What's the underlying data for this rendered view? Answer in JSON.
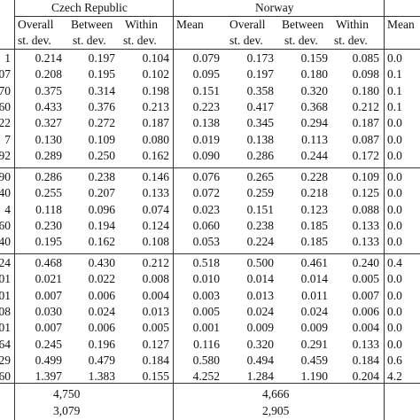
{
  "headers": {
    "group1": "Czech Republic",
    "group2": "Norway",
    "col_overall": "Overall",
    "col_between": "Between",
    "col_within": "Within",
    "col_mean": "Mean",
    "col_sd": "st. dev.",
    "col_mean_right": "Mean"
  },
  "rows": [
    {
      "stub": "1",
      "c": [
        "0.214",
        "0.197",
        "0.104"
      ],
      "n": [
        "0.079",
        "0.173",
        "0.159",
        "0.085"
      ],
      "r": "0.0"
    },
    {
      "stub": "07",
      "c": [
        "0.208",
        "0.195",
        "0.102"
      ],
      "n": [
        "0.095",
        "0.197",
        "0.180",
        "0.098"
      ],
      "r": "0.1"
    },
    {
      "stub": "70",
      "c": [
        "0.375",
        "0.314",
        "0.198"
      ],
      "n": [
        "0.151",
        "0.358",
        "0.320",
        "0.180"
      ],
      "r": "0.1"
    },
    {
      "stub": "60",
      "c": [
        "0.433",
        "0.376",
        "0.213"
      ],
      "n": [
        "0.223",
        "0.417",
        "0.368",
        "0.212"
      ],
      "r": "0.1"
    },
    {
      "stub": "22",
      "c": [
        "0.327",
        "0.272",
        "0.187"
      ],
      "n": [
        "0.138",
        "0.345",
        "0.294",
        "0.187"
      ],
      "r": "0.0"
    },
    {
      "stub": "7",
      "c": [
        "0.130",
        "0.109",
        "0.080"
      ],
      "n": [
        "0.019",
        "0.138",
        "0.113",
        "0.087"
      ],
      "r": "0.0"
    },
    {
      "stub": "92",
      "c": [
        "0.289",
        "0.250",
        "0.162"
      ],
      "n": [
        "0.090",
        "0.286",
        "0.244",
        "0.172"
      ],
      "r": "0.0"
    },
    {
      "stub": "90",
      "c": [
        "0.286",
        "0.238",
        "0.146"
      ],
      "n": [
        "0.076",
        "0.265",
        "0.228",
        "0.109"
      ],
      "r": "0.0"
    },
    {
      "stub": "40",
      "c": [
        "0.255",
        "0.207",
        "0.133"
      ],
      "n": [
        "0.072",
        "0.259",
        "0.218",
        "0.125"
      ],
      "r": "0.0"
    },
    {
      "stub": "4",
      "c": [
        "0.118",
        "0.096",
        "0.074"
      ],
      "n": [
        "0.023",
        "0.151",
        "0.123",
        "0.088"
      ],
      "r": "0.0"
    },
    {
      "stub": "60",
      "c": [
        "0.230",
        "0.194",
        "0.124"
      ],
      "n": [
        "0.060",
        "0.238",
        "0.185",
        "0.133"
      ],
      "r": "0.0"
    },
    {
      "stub": "40",
      "c": [
        "0.195",
        "0.162",
        "0.108"
      ],
      "n": [
        "0.053",
        "0.224",
        "0.185",
        "0.133"
      ],
      "r": "0.0"
    },
    {
      "stub": "24",
      "c": [
        "0.468",
        "0.430",
        "0.212"
      ],
      "n": [
        "0.518",
        "0.500",
        "0.461",
        "0.240"
      ],
      "r": "0.4"
    },
    {
      "stub": "01",
      "c": [
        "0.021",
        "0.022",
        "0.008"
      ],
      "n": [
        "0.010",
        "0.014",
        "0.014",
        "0.005"
      ],
      "r": "0.0"
    },
    {
      "stub": "01",
      "c": [
        "0.007",
        "0.006",
        "0.004"
      ],
      "n": [
        "0.003",
        "0.013",
        "0.011",
        "0.007"
      ],
      "r": "0.0"
    },
    {
      "stub": "08",
      "c": [
        "0.030",
        "0.024",
        "0.013"
      ],
      "n": [
        "0.005",
        "0.024",
        "0.024",
        "0.006"
      ],
      "r": "0.0"
    },
    {
      "stub": "01",
      "c": [
        "0.007",
        "0.006",
        "0.005"
      ],
      "n": [
        "0.001",
        "0.009",
        "0.009",
        "0.004"
      ],
      "r": "0.0"
    },
    {
      "stub": "64",
      "c": [
        "0.245",
        "0.196",
        "0.127"
      ],
      "n": [
        "0.116",
        "0.320",
        "0.291",
        "0.133"
      ],
      "r": "0.0"
    },
    {
      "stub": "29",
      "c": [
        "0.499",
        "0.479",
        "0.184"
      ],
      "n": [
        "0.580",
        "0.494",
        "0.459",
        "0.184"
      ],
      "r": "0.6"
    },
    {
      "stub": "60",
      "c": [
        "1.397",
        "1.383",
        "0.155"
      ],
      "n": [
        "4.252",
        "1.284",
        "1.190",
        "0.204"
      ],
      "r": "4.2"
    }
  ],
  "footer": {
    "czech_obs": "4,750",
    "czech_firms": "3,079",
    "norway_obs": "4,666",
    "norway_firms": "2,905"
  }
}
